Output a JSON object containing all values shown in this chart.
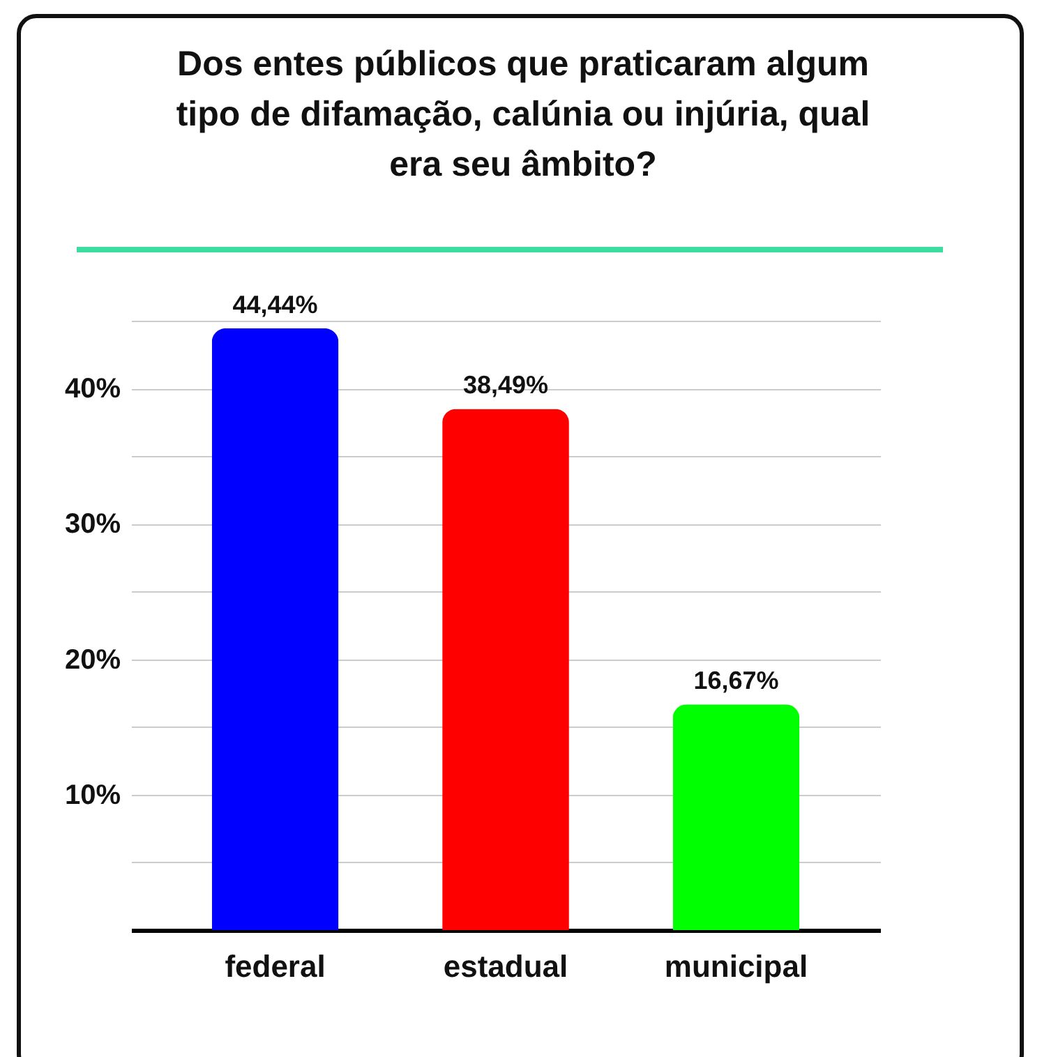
{
  "chart_data": {
    "type": "bar",
    "title": "Dos entes públicos que praticaram algum tipo de difamação, calúnia ou injúria, qual era seu âmbito?",
    "categories": [
      "federal",
      "estadual",
      "municipal"
    ],
    "values": [
      44.44,
      38.49,
      16.67
    ],
    "colors": [
      "#0000ff",
      "#ff0000",
      "#00ff00"
    ],
    "value_labels": [
      "44,44%",
      "38,49%",
      "16,67%"
    ],
    "ylim": [
      0,
      45
    ],
    "yticks": [
      {
        "value": 5,
        "label": null
      },
      {
        "value": 10,
        "label": "10%"
      },
      {
        "value": 15,
        "label": null
      },
      {
        "value": 20,
        "label": "20%"
      },
      {
        "value": 25,
        "label": null
      },
      {
        "value": 30,
        "label": "30%"
      },
      {
        "value": 35,
        "label": null
      },
      {
        "value": 40,
        "label": "40%"
      },
      {
        "value": 45,
        "label": null
      }
    ],
    "grid": "y"
  }
}
